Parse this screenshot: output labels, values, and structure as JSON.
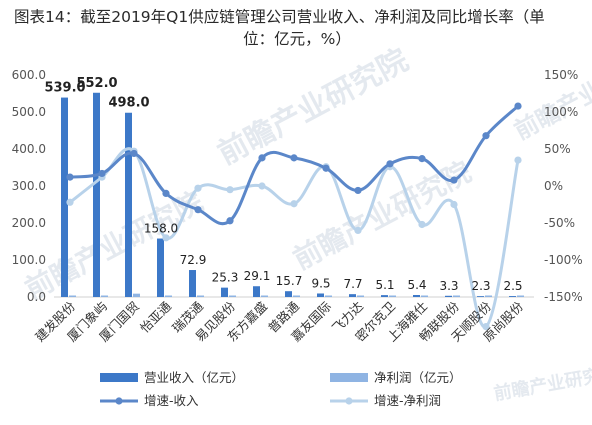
{
  "title_line1": "图表14：截至2019年Q1供应链管理公司营业收入、净利润及同比增长率（单",
  "title_line2": "位：亿元，%）",
  "watermark": "前瞻产业研究院",
  "colors": {
    "revenue_bar": "#3c78c8",
    "profit_bar": "#8fb4e3",
    "growth_revenue": "#5b87c9",
    "growth_profit": "#b8d2ea"
  },
  "chart_data": {
    "type": "bar",
    "categories": [
      "建发股份",
      "厦门象屿",
      "厦门国贸",
      "怡亚通",
      "瑞茂通",
      "易见股份",
      "东方嘉盛",
      "普路通",
      "嘉友国际",
      "飞力达",
      "密尔克卫",
      "上海雅仕",
      "畅联股份",
      "天顺股份",
      "原尚股份"
    ],
    "series": [
      {
        "name": "营业收入（亿元）",
        "kind": "bar",
        "axis": "left",
        "values": [
          539.0,
          552.0,
          498.0,
          158.0,
          72.9,
          25.3,
          29.1,
          15.7,
          9.5,
          7.7,
          5.1,
          5.4,
          3.3,
          2.3,
          2.5
        ],
        "labels": [
          "539.0",
          "552.0",
          "498.0",
          "158.0",
          "72.9",
          "25.3",
          "29.1",
          "15.7",
          "9.5",
          "7.7",
          "5.1",
          "5.4",
          "3.3",
          "2.3",
          "2.5"
        ]
      },
      {
        "name": "净利润（亿元）",
        "kind": "bar",
        "axis": "left",
        "values": [
          3.5,
          4.0,
          9.0,
          1.0,
          0.8,
          1.2,
          0.3,
          0.4,
          0.5,
          0.2,
          0.6,
          0.3,
          0.3,
          0.2,
          0.3
        ]
      },
      {
        "name": "增速-收入",
        "kind": "line",
        "axis": "right",
        "values": [
          12,
          17,
          44,
          -10,
          -32,
          -47,
          38,
          38,
          24,
          -6,
          30,
          37,
          8,
          68,
          108
        ]
      },
      {
        "name": "增速-净利润",
        "kind": "line",
        "axis": "right",
        "values": [
          -22,
          12,
          47,
          -70,
          -3,
          -5,
          0,
          -24,
          26,
          -60,
          26,
          -52,
          -25,
          -190,
          35
        ]
      }
    ],
    "y_left": {
      "min": 0,
      "max": 600,
      "ticks": [
        "0.0",
        "100.0",
        "200.0",
        "300.0",
        "400.0",
        "500.0",
        "600.0"
      ]
    },
    "y_right": {
      "min": -150,
      "max": 150,
      "ticks": [
        "-150%",
        "-100%",
        "-50%",
        "0%",
        "50%",
        "100%",
        "150%"
      ]
    },
    "legend_position": "bottom",
    "grid": false
  }
}
